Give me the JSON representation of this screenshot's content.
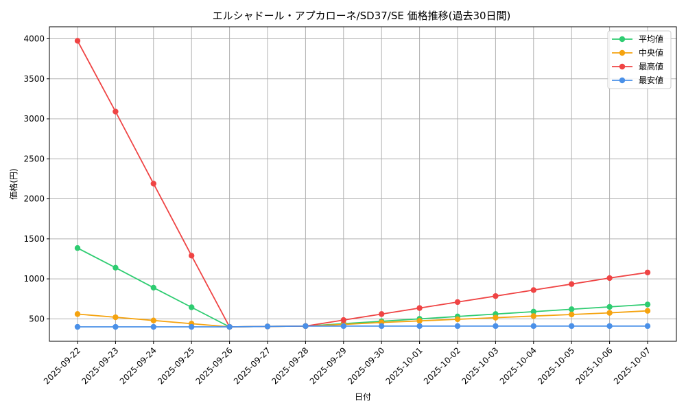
{
  "chart_data": {
    "type": "line",
    "title": "エルシャドール・アプカローネ/SD37/SE 価格推移(過去30日間)",
    "xlabel": "日付",
    "ylabel": "価格(円)",
    "ylim": [
      220,
      4150
    ],
    "yticks": [
      500,
      1000,
      1500,
      2000,
      2500,
      3000,
      3500,
      4000
    ],
    "grid": true,
    "legend_position": "top-right",
    "categories": [
      "2025-09-22",
      "2025-09-23",
      "2025-09-24",
      "2025-09-25",
      "2025-09-26",
      "2025-09-27",
      "2025-09-28",
      "2025-09-29",
      "2025-09-30",
      "2025-10-01",
      "2025-10-02",
      "2025-10-03",
      "2025-10-04",
      "2025-10-05",
      "2025-10-06",
      "2025-10-07"
    ],
    "series": [
      {
        "name": "平均値",
        "color": "#2ecc71",
        "values": [
          1385,
          1140,
          890,
          645,
          400,
          405,
          410,
          440,
          470,
          500,
          530,
          560,
          590,
          620,
          650,
          680
        ]
      },
      {
        "name": "中央値",
        "color": "#f5a30f",
        "values": [
          560,
          520,
          480,
          440,
          400,
          405,
          410,
          430,
          455,
          475,
          495,
          515,
          535,
          555,
          575,
          600
        ]
      },
      {
        "name": "最高値",
        "color": "#ef4444",
        "values": [
          3975,
          3090,
          2190,
          1290,
          400,
          405,
          410,
          485,
          560,
          635,
          710,
          785,
          860,
          935,
          1010,
          1080
        ]
      },
      {
        "name": "最安値",
        "color": "#4a90e8",
        "values": [
          400,
          400,
          400,
          400,
          400,
          405,
          410,
          410,
          410,
          410,
          410,
          410,
          410,
          410,
          410,
          410
        ]
      }
    ]
  }
}
